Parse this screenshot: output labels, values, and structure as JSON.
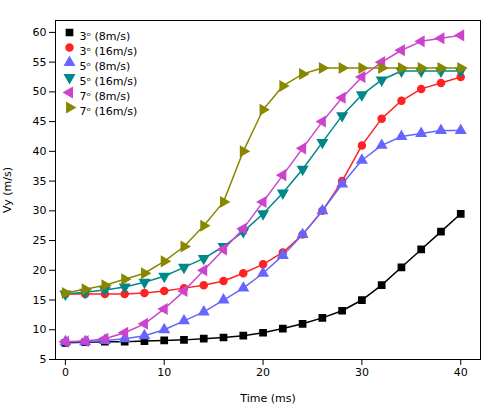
{
  "chart_data": {
    "type": "line",
    "xlabel": "Time (ms)",
    "ylabel": "Vy (m/s)",
    "x": [
      0,
      2,
      4,
      6,
      8,
      10,
      12,
      14,
      16,
      18,
      20,
      22,
      24,
      26,
      28,
      30,
      32,
      34,
      36,
      38,
      40
    ],
    "series": [
      {
        "name": "3ᵒ (8m/s)",
        "color": "#000000",
        "marker": "square",
        "values": [
          7.8,
          7.9,
          8.0,
          8.0,
          8.1,
          8.2,
          8.3,
          8.5,
          8.7,
          9.0,
          9.5,
          10.2,
          11.0,
          12.0,
          13.2,
          15.0,
          17.5,
          20.5,
          23.5,
          26.5,
          29.5
        ]
      },
      {
        "name": "3ᵒ (16m/s)",
        "color": "#ff2222",
        "marker": "circle",
        "values": [
          16.0,
          16.0,
          16.0,
          16.0,
          16.2,
          16.5,
          17.0,
          17.5,
          18.2,
          19.5,
          21.0,
          23.0,
          26.0,
          30.0,
          35.0,
          41.0,
          45.5,
          48.5,
          50.5,
          51.5,
          52.5
        ]
      },
      {
        "name": "5ᵒ (8m/s)",
        "color": "#6666ff",
        "marker": "triangle-up",
        "values": [
          8.0,
          8.0,
          8.2,
          8.5,
          9.0,
          10.0,
          11.5,
          13.0,
          15.0,
          17.0,
          19.5,
          22.5,
          26.0,
          30.0,
          34.5,
          38.5,
          41.0,
          42.5,
          43.0,
          43.5,
          43.5
        ]
      },
      {
        "name": "5ᵒ (16m/s)",
        "color": "#008888",
        "marker": "triangle-down",
        "values": [
          16.0,
          16.3,
          16.7,
          17.2,
          18.0,
          19.0,
          20.5,
          22.0,
          24.0,
          26.5,
          29.5,
          33.0,
          37.0,
          41.5,
          46.0,
          49.5,
          52.0,
          53.5,
          53.5,
          53.5,
          53.5
        ]
      },
      {
        "name": "7ᵒ (8m/s)",
        "color": "#cc44cc",
        "marker": "triangle-left",
        "values": [
          8.0,
          8.1,
          8.5,
          9.5,
          11.0,
          13.5,
          16.5,
          20.0,
          23.5,
          27.0,
          31.5,
          36.0,
          40.5,
          45.0,
          49.0,
          52.5,
          55.0,
          57.0,
          58.5,
          59.0,
          59.5
        ]
      },
      {
        "name": "7ᵒ (16m/s)",
        "color": "#888800",
        "marker": "triangle-right",
        "values": [
          16.2,
          16.8,
          17.5,
          18.5,
          19.5,
          21.5,
          24.0,
          27.5,
          31.5,
          40.0,
          47.0,
          51.0,
          53.0,
          54.0,
          54.0,
          54.0,
          54.0,
          54.0,
          54.0,
          54.0,
          54.0
        ]
      }
    ],
    "xlim": [
      -1,
      42
    ],
    "ylim": [
      5,
      62
    ],
    "xticks": [
      0,
      10,
      20,
      30,
      40
    ],
    "yticks": [
      5,
      10,
      15,
      20,
      25,
      30,
      35,
      40,
      45,
      50,
      55,
      60
    ],
    "legend": "upper left"
  }
}
